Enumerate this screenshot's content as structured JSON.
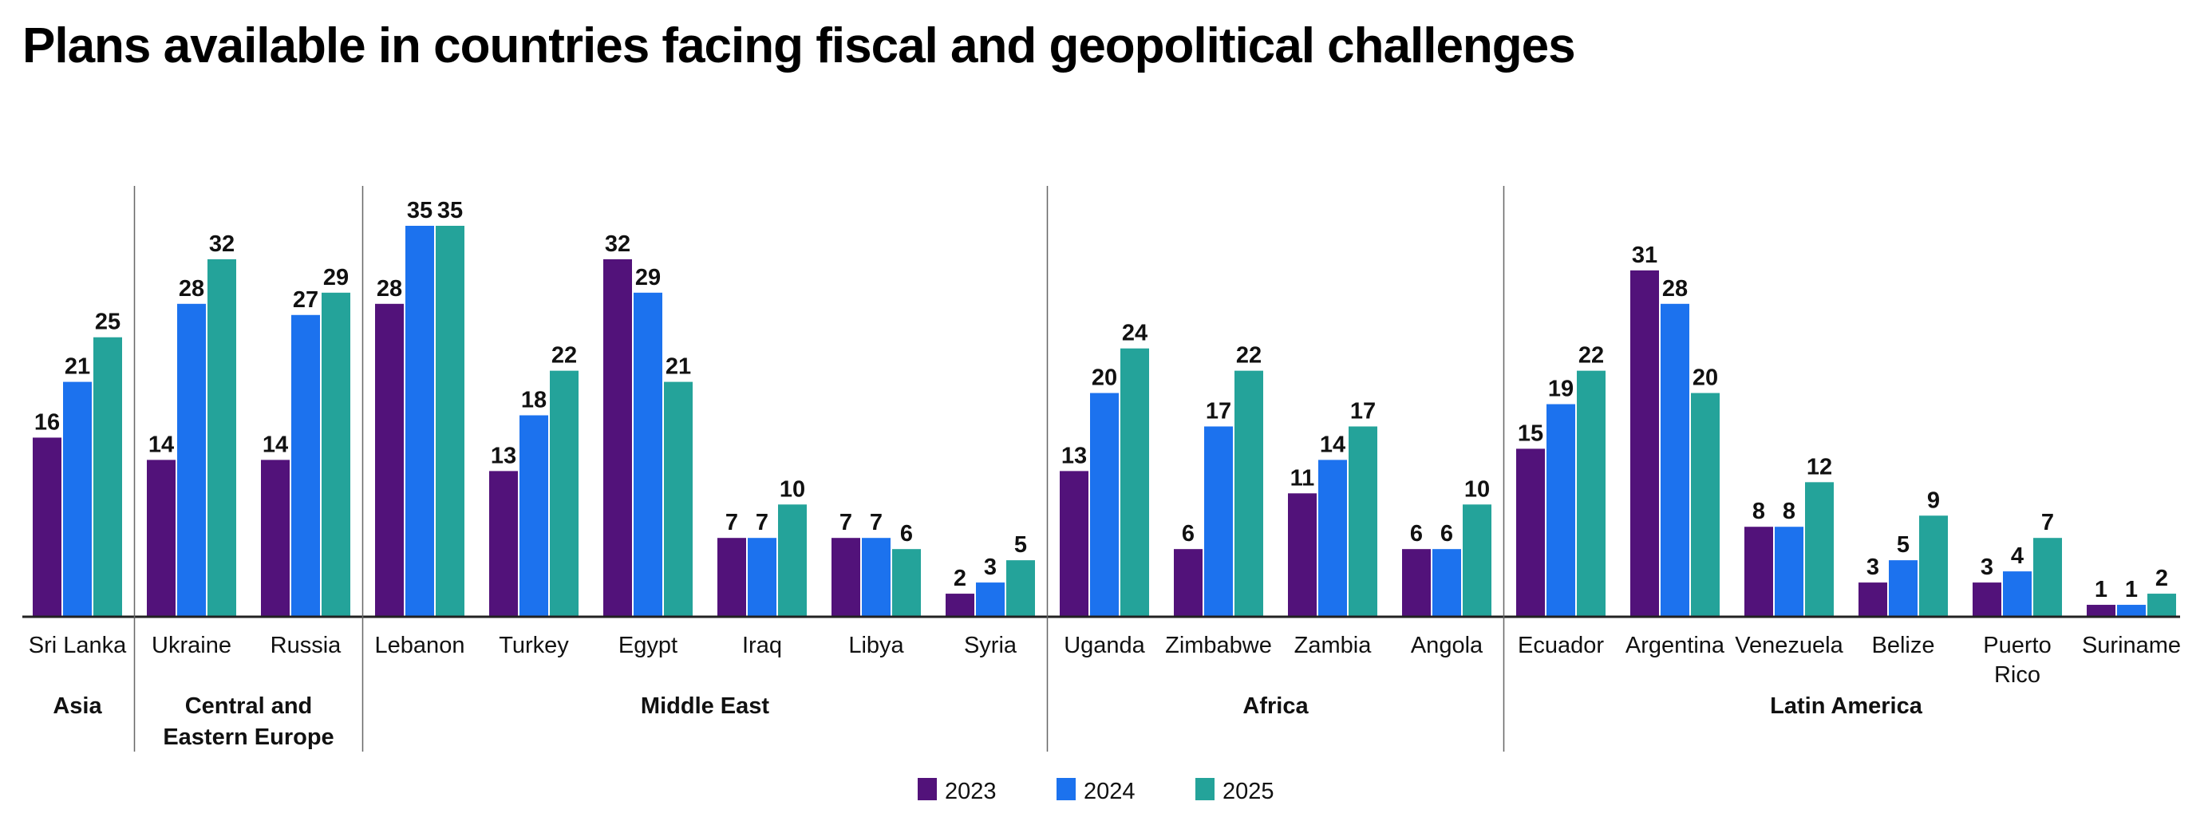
{
  "chart_data": {
    "type": "bar",
    "title": "Plans available in countries facing fiscal and geopolitical challenges",
    "xlabel": "",
    "ylabel": "",
    "ylim": [
      0,
      35
    ],
    "grid": false,
    "legend_placement": "bottom-center",
    "colors": {
      "2023": "#52127a",
      "2024": "#1c72ee",
      "2025": "#24a39a"
    },
    "categories": [
      "Sri Lanka",
      "Ukraine",
      "Russia",
      "Lebanon",
      "Turkey",
      "Egypt",
      "Iraq",
      "Libya",
      "Syria",
      "Uganda",
      "Zimbabwe",
      "Zambia",
      "Angola",
      "Ecuador",
      "Argentina",
      "Venezuela",
      "Belize",
      "Puerto Rico",
      "Suriname"
    ],
    "regions": [
      {
        "name": "Asia",
        "countries": [
          "Sri Lanka"
        ]
      },
      {
        "name": "Central and Eastern Europe",
        "countries": [
          "Ukraine",
          "Russia"
        ]
      },
      {
        "name": "Middle East",
        "countries": [
          "Lebanon",
          "Turkey",
          "Egypt",
          "Iraq",
          "Libya",
          "Syria"
        ]
      },
      {
        "name": "Africa",
        "countries": [
          "Uganda",
          "Zimbabwe",
          "Zambia",
          "Angola"
        ]
      },
      {
        "name": "Latin America",
        "countries": [
          "Ecuador",
          "Argentina",
          "Venezuela",
          "Belize",
          "Puerto Rico",
          "Suriname"
        ]
      }
    ],
    "series": [
      {
        "name": "2023",
        "values": [
          16,
          14,
          14,
          28,
          13,
          32,
          7,
          7,
          2,
          13,
          6,
          11,
          6,
          15,
          31,
          8,
          3,
          3,
          1
        ]
      },
      {
        "name": "2024",
        "values": [
          21,
          28,
          27,
          35,
          18,
          29,
          7,
          7,
          3,
          20,
          17,
          14,
          6,
          19,
          28,
          8,
          5,
          4,
          1
        ]
      },
      {
        "name": "2025",
        "values": [
          25,
          32,
          29,
          35,
          22,
          21,
          10,
          6,
          5,
          24,
          22,
          17,
          10,
          22,
          20,
          12,
          9,
          7,
          2
        ]
      }
    ]
  }
}
